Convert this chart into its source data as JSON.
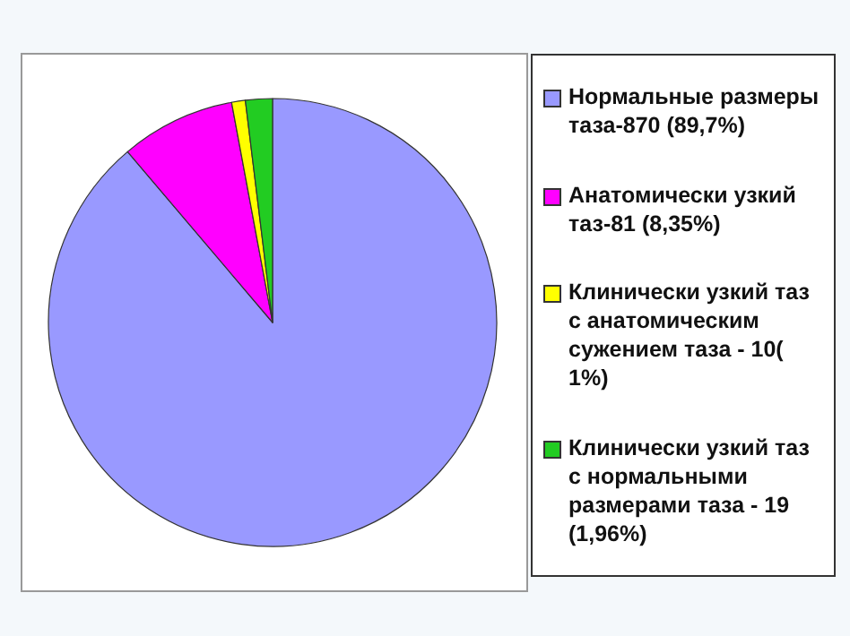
{
  "chart_data": {
    "type": "pie",
    "categories": [
      "Нормальные размеры таза-870 (89,7%)",
      "Анатомически узкий таз-81 (8,35%)",
      "Клинически узкий таз с анатомическим сужением таза - 10( 1%)",
      "Клинически узкий таз с нормальными размерами таза - 19 (1,96%)"
    ],
    "values": [
      89.7,
      8.35,
      1,
      1.96
    ],
    "colors": [
      "#9999ff",
      "#ff00ff",
      "#ffff00",
      "#22cc22"
    ],
    "legend": "right"
  }
}
